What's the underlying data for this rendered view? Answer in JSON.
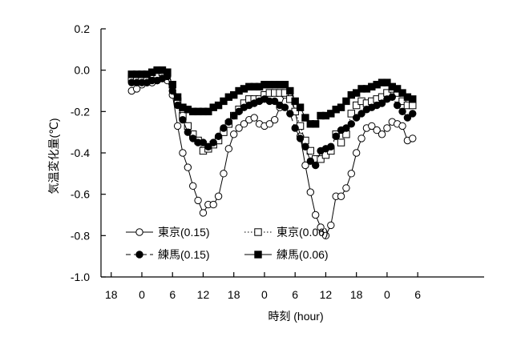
{
  "chart_data": {
    "type": "line",
    "title": "",
    "xlabel": "時刻 (hour)",
    "ylabel": "気温変化量(℃)",
    "xlim": [
      -14,
      61
    ],
    "ylim": [
      -1.0,
      0.2
    ],
    "x_ticks": [
      {
        "value": -12,
        "label": "18"
      },
      {
        "value": -6,
        "label": "0"
      },
      {
        "value": 0,
        "label": "6"
      },
      {
        "value": 6,
        "label": "12"
      },
      {
        "value": 12,
        "label": "18"
      },
      {
        "value": 18,
        "label": "0"
      },
      {
        "value": 24,
        "label": "6"
      },
      {
        "value": 30,
        "label": "12"
      },
      {
        "value": 36,
        "label": "18"
      },
      {
        "value": 42,
        "label": "0"
      },
      {
        "value": 48,
        "label": "6"
      }
    ],
    "y_ticks": [
      {
        "value": 0.2,
        "label": "0.2"
      },
      {
        "value": 0.0,
        "label": "0.0"
      },
      {
        "value": -0.2,
        "label": "-0.2"
      },
      {
        "value": -0.4,
        "label": "-0.4"
      },
      {
        "value": -0.6,
        "label": "-0.6"
      },
      {
        "value": -0.8,
        "label": "-0.8"
      },
      {
        "value": -1.0,
        "label": "-1.0"
      }
    ],
    "grid": false,
    "legend": "bottom-left",
    "x": [
      -8,
      -7,
      -6,
      -5,
      -4,
      -3,
      -2,
      -1,
      0,
      1,
      2,
      3,
      4,
      5,
      6,
      7,
      8,
      9,
      10,
      11,
      12,
      13,
      14,
      15,
      16,
      17,
      18,
      19,
      20,
      21,
      22,
      23,
      24,
      25,
      26,
      27,
      28,
      29,
      30,
      31,
      32,
      33,
      34,
      35,
      36,
      37,
      38,
      39,
      40,
      41,
      42,
      43,
      44,
      45,
      46,
      47
    ],
    "series": [
      {
        "name": "東京(0.15)",
        "line": "solid",
        "marker": "circle-open",
        "color": "#000000",
        "values": [
          -0.1,
          -0.09,
          -0.07,
          -0.06,
          -0.06,
          -0.05,
          -0.04,
          -0.05,
          -0.12,
          -0.27,
          -0.4,
          -0.47,
          -0.56,
          -0.63,
          -0.69,
          -0.65,
          -0.65,
          -0.61,
          -0.5,
          -0.38,
          -0.31,
          -0.28,
          -0.26,
          -0.24,
          -0.23,
          -0.26,
          -0.27,
          -0.26,
          -0.24,
          -0.18,
          -0.12,
          -0.11,
          -0.2,
          -0.32,
          -0.46,
          -0.59,
          -0.7,
          -0.76,
          -0.8,
          -0.75,
          -0.61,
          -0.61,
          -0.57,
          -0.5,
          -0.4,
          -0.33,
          -0.28,
          -0.27,
          -0.29,
          -0.31,
          -0.28,
          -0.25,
          -0.26,
          -0.27,
          -0.34,
          -0.33
        ]
      },
      {
        "name": "東京(0.06)",
        "line": "dotted",
        "marker": "square-open",
        "color": "#000000",
        "values": [
          -0.04,
          -0.04,
          -0.04,
          -0.04,
          -0.03,
          -0.02,
          -0.01,
          -0.01,
          -0.07,
          -0.15,
          -0.22,
          -0.27,
          -0.31,
          -0.34,
          -0.39,
          -0.38,
          -0.36,
          -0.34,
          -0.3,
          -0.26,
          -0.22,
          -0.19,
          -0.16,
          -0.14,
          -0.14,
          -0.14,
          -0.12,
          -0.11,
          -0.11,
          -0.11,
          -0.11,
          -0.14,
          -0.2,
          -0.27,
          -0.34,
          -0.39,
          -0.43,
          -0.43,
          -0.41,
          -0.39,
          -0.31,
          -0.35,
          -0.31,
          -0.21,
          -0.17,
          -0.15,
          -0.16,
          -0.15,
          -0.14,
          -0.13,
          -0.11,
          -0.09,
          -0.11,
          -0.15,
          -0.17,
          -0.17
        ]
      },
      {
        "name": "練馬(0.15)",
        "line": "dashed",
        "marker": "circle-filled",
        "color": "#000000",
        "values": [
          -0.06,
          -0.06,
          -0.06,
          -0.06,
          -0.05,
          -0.05,
          -0.04,
          -0.03,
          -0.1,
          -0.17,
          -0.24,
          -0.3,
          -0.33,
          -0.35,
          -0.35,
          -0.37,
          -0.35,
          -0.32,
          -0.28,
          -0.25,
          -0.22,
          -0.2,
          -0.18,
          -0.17,
          -0.16,
          -0.15,
          -0.14,
          -0.15,
          -0.15,
          -0.17,
          -0.18,
          -0.21,
          -0.28,
          -0.33,
          -0.37,
          -0.44,
          -0.46,
          -0.39,
          -0.38,
          -0.37,
          -0.32,
          -0.29,
          -0.28,
          -0.26,
          -0.23,
          -0.21,
          -0.19,
          -0.18,
          -0.17,
          -0.16,
          -0.14,
          -0.13,
          -0.17,
          -0.2,
          -0.23,
          -0.21
        ]
      },
      {
        "name": "練馬(0.06)",
        "line": "solid",
        "marker": "square-filled",
        "color": "#000000",
        "values": [
          -0.02,
          -0.02,
          -0.02,
          -0.02,
          -0.01,
          0.0,
          0.0,
          -0.01,
          -0.07,
          -0.13,
          -0.18,
          -0.19,
          -0.2,
          -0.2,
          -0.2,
          -0.2,
          -0.18,
          -0.17,
          -0.15,
          -0.13,
          -0.12,
          -0.1,
          -0.09,
          -0.08,
          -0.08,
          -0.08,
          -0.07,
          -0.07,
          -0.07,
          -0.07,
          -0.07,
          -0.1,
          -0.15,
          -0.18,
          -0.23,
          -0.26,
          -0.26,
          -0.22,
          -0.22,
          -0.21,
          -0.19,
          -0.18,
          -0.15,
          -0.12,
          -0.11,
          -0.09,
          -0.09,
          -0.08,
          -0.07,
          -0.06,
          -0.06,
          -0.08,
          -0.09,
          -0.11,
          -0.13,
          -0.14
        ]
      }
    ]
  }
}
